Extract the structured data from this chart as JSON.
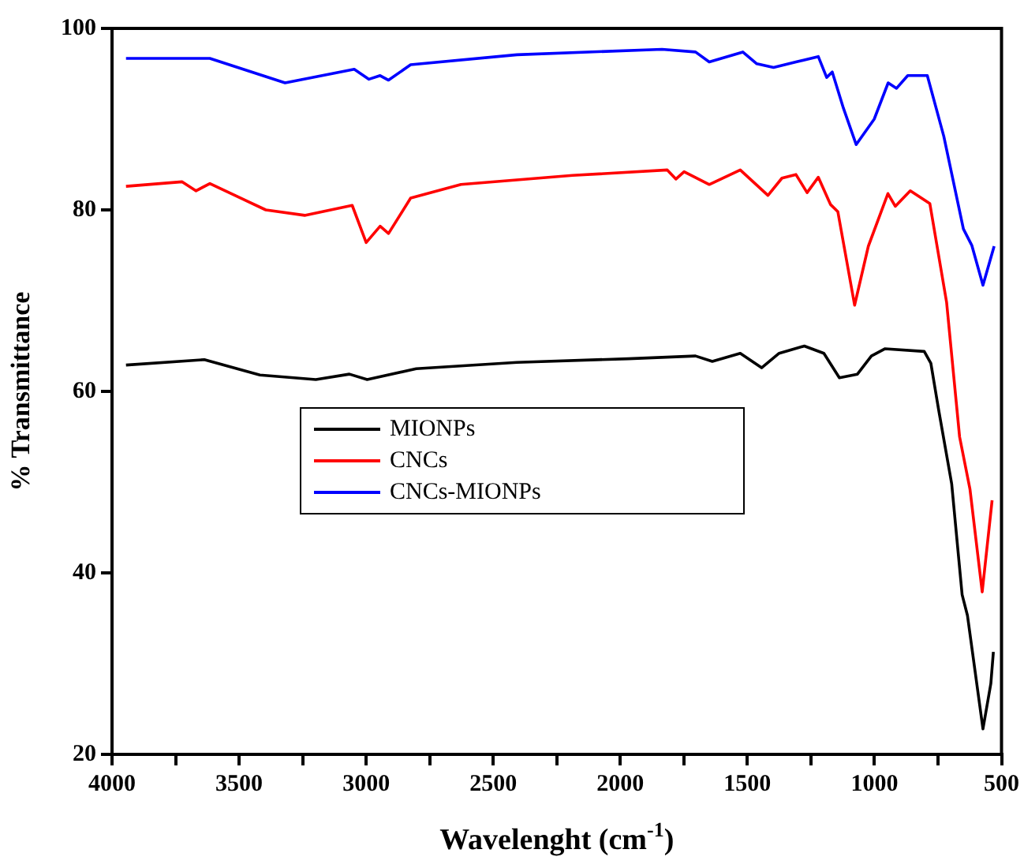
{
  "chart_data": {
    "type": "line",
    "xlabel": "Wavelenght (cm$^{-1}$)",
    "ylabel": "% Transmittance",
    "xlim": [
      4000,
      500
    ],
    "ylim": [
      20,
      100
    ],
    "xticks": [
      4000,
      {
        "value": 3750,
        "label": null
      },
      3500,
      {
        "value": 3250,
        "label": null
      },
      3000,
      {
        "value": 2750,
        "label": null
      },
      2500,
      {
        "value": 2250,
        "label": null
      },
      2000,
      {
        "value": 1750,
        "label": null
      },
      1500,
      {
        "value": 1250,
        "label": null
      },
      1000,
      {
        "value": 750,
        "label": null
      },
      500
    ],
    "yticks": [
      20,
      40,
      60,
      80,
      100
    ],
    "grid": false,
    "legend": "center",
    "marker": "none",
    "line_style": "solid",
    "series": [
      {
        "name": "MIONPs",
        "color": "#000000",
        "x": [
          3945,
          3637,
          3418,
          3198,
          3066,
          2996,
          2803,
          2407,
          1968,
          1704,
          1638,
          1528,
          1444,
          1375,
          1276,
          1199,
          1138,
          1067,
          1012,
          958,
          804,
          778,
          747,
          696,
          655,
          634,
          573,
          542,
          532
        ],
        "values": [
          62.9,
          63.5,
          61.8,
          61.3,
          61.9,
          61.3,
          62.5,
          63.2,
          63.6,
          63.9,
          63.3,
          64.2,
          62.6,
          64.2,
          65.0,
          64.2,
          61.5,
          61.9,
          63.9,
          64.7,
          64.4,
          63.1,
          57.9,
          49.8,
          37.6,
          35.3,
          22.8,
          27.8,
          31.3
        ]
      },
      {
        "name": "CNCs",
        "color": "#ff0000",
        "x": [
          3945,
          3725,
          3670,
          3615,
          3395,
          3242,
          3055,
          3000,
          2945,
          2912,
          2825,
          2627,
          2188,
          1815,
          1781,
          1749,
          1650,
          1528,
          1419,
          1364,
          1309,
          1265,
          1221,
          1173,
          1144,
          1078,
          1024,
          947,
          918,
          859,
          782,
          716,
          665,
          624,
          576,
          537
        ],
        "values": [
          82.6,
          83.1,
          82.1,
          82.9,
          80.0,
          79.4,
          80.5,
          76.4,
          78.2,
          77.4,
          81.3,
          82.8,
          83.8,
          84.4,
          83.4,
          84.2,
          82.8,
          84.4,
          81.6,
          83.5,
          83.9,
          81.9,
          83.6,
          80.6,
          79.8,
          69.5,
          76.0,
          81.8,
          80.4,
          82.1,
          80.7,
          69.8,
          55.0,
          49.2,
          37.9,
          48.0
        ]
      },
      {
        "name": "CNCs-MIONPs",
        "color": "#0000ff",
        "x": [
          3945,
          3615,
          3319,
          3047,
          2989,
          2945,
          2912,
          2825,
          2407,
          1836,
          1704,
          1650,
          1518,
          1463,
          1397,
          1309,
          1221,
          1188,
          1166,
          1122,
          1072,
          1001,
          946,
          913,
          869,
          792,
          727,
          650,
          617,
          573,
          529
        ],
        "values": [
          96.7,
          96.7,
          94.0,
          95.5,
          94.4,
          94.8,
          94.3,
          96.0,
          97.1,
          97.7,
          97.4,
          96.3,
          97.4,
          96.1,
          95.7,
          96.3,
          96.9,
          94.6,
          95.2,
          91.2,
          87.2,
          90.0,
          94.0,
          93.4,
          94.8,
          94.8,
          88.1,
          77.9,
          76.1,
          71.7,
          76.0
        ]
      }
    ]
  }
}
